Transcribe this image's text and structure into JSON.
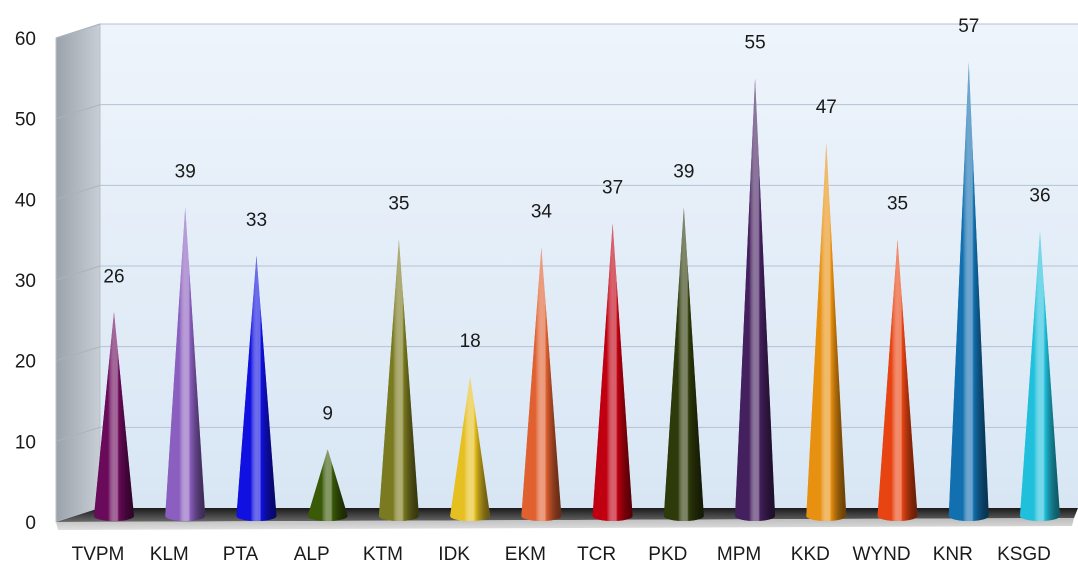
{
  "chart_data": {
    "type": "bar",
    "categories": [
      "TVPM",
      "KLM",
      "PTA",
      "ALP",
      "KTM",
      "IDK",
      "EKM",
      "TCR",
      "PKD",
      "MPM",
      "KKD",
      "WYND",
      "KNR",
      "KSGD"
    ],
    "values": [
      26,
      39,
      33,
      9,
      35,
      18,
      34,
      37,
      39,
      55,
      47,
      35,
      57,
      36
    ],
    "colors": [
      "#6a0a5a",
      "#8a5fbf",
      "#1010e0",
      "#3a5a08",
      "#7a7a20",
      "#e6c020",
      "#e06030",
      "#c00010",
      "#2e3a0a",
      "#45205f",
      "#e8900f",
      "#e84412",
      "#1270b0",
      "#20c0dc"
    ],
    "ylim": [
      0,
      60
    ],
    "yticks": [
      0,
      10,
      20,
      30,
      40,
      50,
      60
    ],
    "grid": true,
    "mark_shape": "cone"
  }
}
